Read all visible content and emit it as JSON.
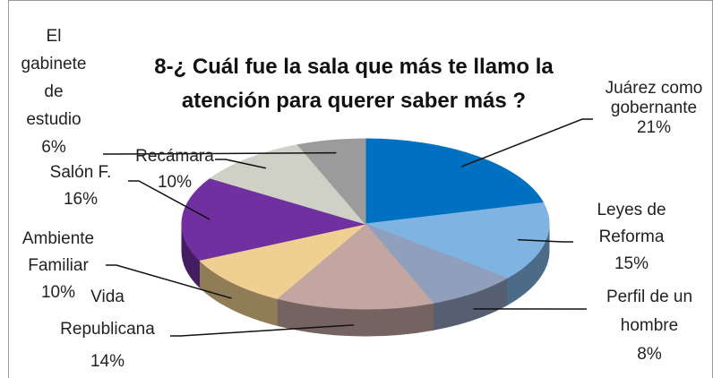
{
  "chart_data": {
    "type": "pie3d",
    "title": "8-¿ Cuál fue la sala que más te llamo la atención  para querer saber más ?",
    "categories": [
      "Juárez como gobernante",
      "Leyes de Reforma",
      "Perfil de un hombre",
      "Vida Republicana",
      "Ambiente Familiar",
      "Salón F.",
      "Recámara",
      "El gabinete de estudio"
    ],
    "values": [
      21,
      15,
      8,
      14,
      10,
      16,
      10,
      6
    ],
    "value_labels": [
      "21%",
      "15%",
      "8%",
      "14%",
      "10%",
      "16%",
      "10%",
      "6%"
    ],
    "colors": [
      "#0070c0",
      "#7fb3e2",
      "#8f9fbc",
      "#c3a5a2",
      "#f0d092",
      "#7030a0",
      "#d0d1c6",
      "#9b9b9b"
    ]
  }
}
